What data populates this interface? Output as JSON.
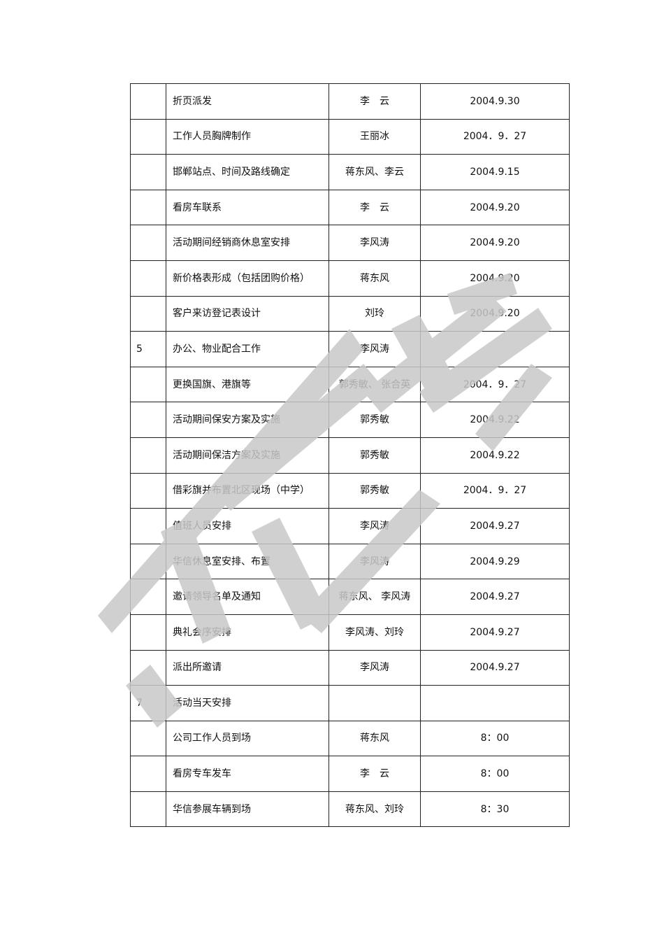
{
  "table": {
    "rows": [
      {
        "no": "",
        "task": "折页派发",
        "person": "李　云",
        "date": "2004.9.30"
      },
      {
        "no": "",
        "task": "工作人员胸牌制作",
        "person": "王丽冰",
        "date": "2004．9．27"
      },
      {
        "no": "",
        "task": "邯郸站点、时间及路线确定",
        "person": "蒋东风、李云",
        "date": "2004.9.15"
      },
      {
        "no": "",
        "task": "看房车联系",
        "person": "李　云",
        "date": "2004.9.20"
      },
      {
        "no": "",
        "task": "活动期间经销商休息室安排",
        "person": "李风涛",
        "date": "2004.9.20"
      },
      {
        "no": "",
        "task": "新价格表形成（包括团购价格）",
        "person": "蒋东风",
        "date": "2004.9.20"
      },
      {
        "no": "",
        "task": "客户来访登记表设计",
        "person": "刘玲",
        "date": "2004.9.20"
      },
      {
        "no": "5",
        "task": "办公、物业配合工作",
        "person": "李风涛",
        "date": ""
      },
      {
        "no": "",
        "task": "更换国旗、港旗等",
        "person": "郭秀敏、 张合英",
        "date": "2004．9．27"
      },
      {
        "no": "",
        "task": "活动期间保安方案及实施",
        "person": "郭秀敏",
        "date": "2004.9.22"
      },
      {
        "no": "",
        "task": "活动期间保洁方案及实施",
        "person": "郭秀敏",
        "date": "2004.9.22"
      },
      {
        "no": "",
        "task": "借彩旗并布置北区现场（中学）",
        "person": "郭秀敏",
        "date": "2004．9．27"
      },
      {
        "no": "",
        "task": "值班人员安排",
        "person": "李风涛",
        "date": "2004.9.27"
      },
      {
        "no": "",
        "task": "华信休息室安排、布置",
        "person": "李风涛",
        "date": "2004.9.29"
      },
      {
        "no": "",
        "task": "邀请领导名单及通知",
        "person": "蒋东风、 李风涛",
        "date": "2004.9.27"
      },
      {
        "no": "",
        "task": "典礼会序安排",
        "person": "李风涛、刘玲",
        "date": "2004.9.27"
      },
      {
        "no": "",
        "task": "派出所邀请",
        "person": "李风涛",
        "date": "2004.9.27"
      },
      {
        "no": "7",
        "task": "活动当天安排",
        "person": "",
        "date": ""
      },
      {
        "no": "",
        "task": "公司工作人员到场",
        "person": "蒋东风",
        "date": "8：00"
      },
      {
        "no": "",
        "task": "看房专车发车",
        "person": "李　云",
        "date": "8：00"
      },
      {
        "no": "",
        "task": "华信参展车辆到场",
        "person": "蒋东风、刘玲",
        "date": "8：30"
      }
    ]
  },
  "watermark": {
    "color": "#c8c8c8"
  }
}
